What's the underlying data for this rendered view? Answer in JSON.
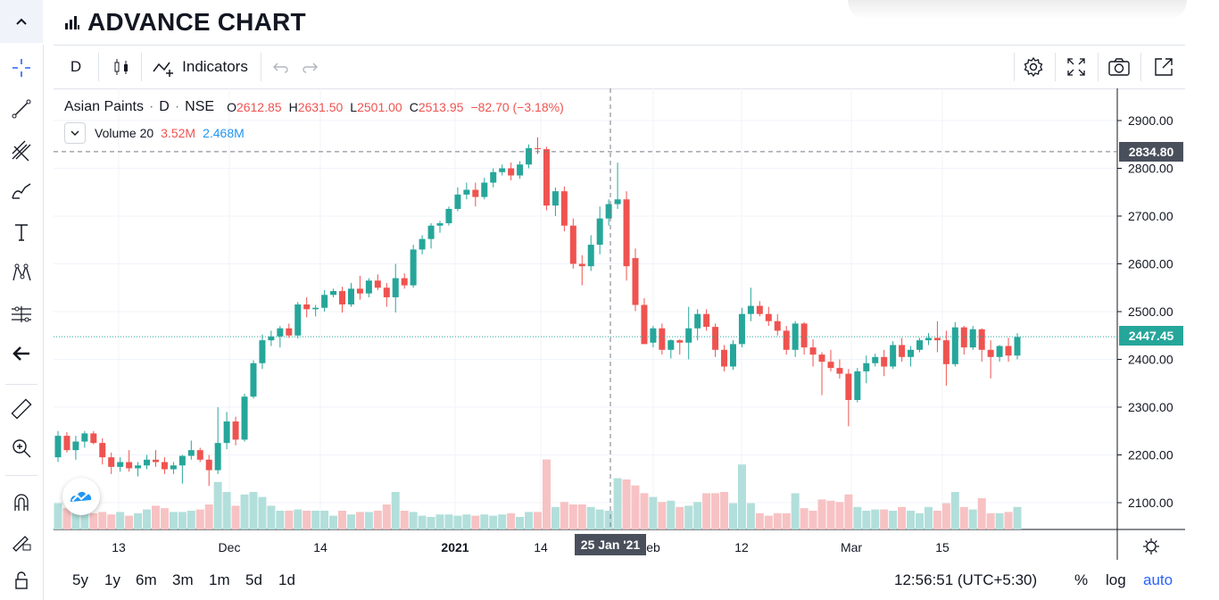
{
  "header": {
    "title": "ADVANCE CHART"
  },
  "toolbar": {
    "interval": "D",
    "indicators_label": "Indicators"
  },
  "legend": {
    "symbol": "Asian Paints",
    "dot": "·",
    "interval": "D",
    "exchange": "NSE",
    "open_label": "O",
    "open": "2612.85",
    "high_label": "H",
    "high": "2631.50",
    "low_label": "L",
    "low": "2501.00",
    "close_label": "C",
    "close": "2513.95",
    "change": "−82.70 (−3.18%)",
    "volume_label": "Volume 20",
    "volume_value": "3.52M",
    "volume_ma": "2.468M"
  },
  "price_axis": {
    "ticks": [
      "2900.00",
      "2800.00",
      "2700.00",
      "2600.00",
      "2500.00",
      "2400.00",
      "2300.00",
      "2200.00",
      "2100.00"
    ],
    "crosshair_price": "2834.80",
    "last_price": "2447.45"
  },
  "time_axis": {
    "ticks": [
      "13",
      "Dec",
      "14",
      "2021",
      "14",
      "eb",
      "12",
      "Mar",
      "15"
    ],
    "crosshair_date": "25 Jan '21"
  },
  "ranges": [
    "5y",
    "1y",
    "6m",
    "3m",
    "1m",
    "5d",
    "1d"
  ],
  "status": {
    "clock": "12:56:51 (UTC+5:30)",
    "percent": "%",
    "log": "log",
    "auto": "auto"
  },
  "colors": {
    "up": "#26a69a",
    "down": "#ef5350",
    "up_volume": "#b2dfdb",
    "down_volume": "#f7c2c3",
    "last_price_tag": "#26a69a",
    "crosshair_tag": "#4a4f5c",
    "accent": "#2962ff"
  },
  "chart_data": {
    "type": "candlestick",
    "symbol": "Asian Paints",
    "interval": "D",
    "ylim": [
      2050,
      2930
    ],
    "candles": [
      [
        2195,
        2250,
        2185,
        2240,
        2.1
      ],
      [
        2240,
        2248,
        2205,
        2210,
        1.7
      ],
      [
        2210,
        2240,
        2190,
        2228,
        1.6
      ],
      [
        2228,
        2250,
        2215,
        2245,
        1.4
      ],
      [
        2245,
        2250,
        2222,
        2225,
        1.3
      ],
      [
        2225,
        2235,
        2180,
        2195,
        1.4
      ],
      [
        2195,
        2205,
        2160,
        2175,
        1.2
      ],
      [
        2175,
        2195,
        2165,
        2185,
        1.4
      ],
      [
        2185,
        2210,
        2165,
        2172,
        1.1
      ],
      [
        2172,
        2185,
        2155,
        2178,
        1.3
      ],
      [
        2178,
        2200,
        2170,
        2190,
        1.6
      ],
      [
        2190,
        2210,
        2175,
        2185,
        1.9
      ],
      [
        2185,
        2195,
        2160,
        2170,
        1.7
      ],
      [
        2170,
        2185,
        2160,
        2178,
        1.4
      ],
      [
        2178,
        2200,
        2140,
        2198,
        1.4
      ],
      [
        2198,
        2230,
        2190,
        2210,
        1.5
      ],
      [
        2210,
        2215,
        2185,
        2190,
        1.6
      ],
      [
        2190,
        2200,
        2135,
        2168,
        2.0
      ],
      [
        2168,
        2300,
        2160,
        2225,
        3.8
      ],
      [
        2225,
        2290,
        2212,
        2270,
        3.0
      ],
      [
        2270,
        2280,
        2220,
        2232,
        1.9
      ],
      [
        2232,
        2328,
        2228,
        2322,
        2.8
      ],
      [
        2322,
        2398,
        2318,
        2392,
        3.0
      ],
      [
        2392,
        2452,
        2380,
        2440,
        2.6
      ],
      [
        2440,
        2460,
        2428,
        2448,
        1.9
      ],
      [
        2448,
        2470,
        2425,
        2465,
        1.5
      ],
      [
        2465,
        2475,
        2445,
        2450,
        1.5
      ],
      [
        2450,
        2520,
        2444,
        2515,
        1.6
      ],
      [
        2515,
        2530,
        2488,
        2505,
        1.5
      ],
      [
        2505,
        2514,
        2490,
        2508,
        1.5
      ],
      [
        2508,
        2545,
        2500,
        2535,
        1.5
      ],
      [
        2535,
        2548,
        2530,
        2543,
        1.1
      ],
      [
        2543,
        2552,
        2498,
        2515,
        1.5
      ],
      [
        2515,
        2560,
        2510,
        2548,
        1.2
      ],
      [
        2548,
        2575,
        2525,
        2538,
        1.4
      ],
      [
        2538,
        2570,
        2530,
        2565,
        1.4
      ],
      [
        2565,
        2578,
        2545,
        2550,
        1.5
      ],
      [
        2550,
        2560,
        2510,
        2530,
        2.0
      ],
      [
        2530,
        2600,
        2498,
        2570,
        3.0
      ],
      [
        2570,
        2580,
        2548,
        2555,
        1.5
      ],
      [
        2555,
        2640,
        2550,
        2630,
        1.4
      ],
      [
        2630,
        2660,
        2620,
        2652,
        1.1
      ],
      [
        2652,
        2685,
        2632,
        2680,
        1.0
      ],
      [
        2680,
        2690,
        2665,
        2685,
        1.2
      ],
      [
        2685,
        2720,
        2680,
        2715,
        1.2
      ],
      [
        2715,
        2760,
        2710,
        2745,
        1.1
      ],
      [
        2745,
        2770,
        2735,
        2755,
        1.2
      ],
      [
        2755,
        2770,
        2720,
        2740,
        1.1
      ],
      [
        2740,
        2780,
        2735,
        2770,
        1.2
      ],
      [
        2770,
        2800,
        2760,
        2792,
        1.1
      ],
      [
        2792,
        2808,
        2785,
        2800,
        1.2
      ],
      [
        2800,
        2812,
        2775,
        2785,
        1.3
      ],
      [
        2785,
        2815,
        2778,
        2808,
        1.0
      ],
      [
        2808,
        2850,
        2800,
        2842,
        1.4
      ],
      [
        2842,
        2865,
        2830,
        2840,
        1.4
      ],
      [
        2840,
        2845,
        2712,
        2722,
        5.6
      ],
      [
        2722,
        2760,
        2700,
        2752,
        1.8
      ],
      [
        2752,
        2762,
        2668,
        2680,
        2.2
      ],
      [
        2680,
        2695,
        2590,
        2600,
        2.0
      ],
      [
        2600,
        2618,
        2555,
        2595,
        2.0
      ],
      [
        2595,
        2660,
        2585,
        2640,
        1.8
      ],
      [
        2640,
        2720,
        2620,
        2695,
        1.6
      ],
      [
        2695,
        2735,
        2680,
        2725,
        1.5
      ],
      [
        2725,
        2812,
        2715,
        2735,
        4.1
      ],
      [
        2735,
        2752,
        2565,
        2595,
        4.0
      ],
      [
        2612,
        2632,
        2501,
        2514,
        3.52
      ],
      [
        2514,
        2528,
        2436,
        2432,
        2.9
      ],
      [
        2435,
        2470,
        2425,
        2465,
        2.6
      ],
      [
        2465,
        2475,
        2410,
        2420,
        2.2
      ],
      [
        2420,
        2442,
        2402,
        2440,
        2.3
      ],
      [
        2440,
        2442,
        2410,
        2435,
        1.8
      ],
      [
        2435,
        2510,
        2400,
        2465,
        1.9
      ],
      [
        2465,
        2505,
        2440,
        2495,
        2.2
      ],
      [
        2495,
        2505,
        2460,
        2468,
        2.9
      ],
      [
        2468,
        2475,
        2405,
        2420,
        2.9
      ],
      [
        2420,
        2430,
        2375,
        2385,
        3.0
      ],
      [
        2385,
        2440,
        2378,
        2432,
        2.1
      ],
      [
        2432,
        2508,
        2425,
        2495,
        5.2
      ],
      [
        2495,
        2550,
        2480,
        2512,
        2.1
      ],
      [
        2512,
        2522,
        2490,
        2495,
        1.3
      ],
      [
        2495,
        2510,
        2470,
        2480,
        1.1
      ],
      [
        2480,
        2495,
        2450,
        2460,
        1.3
      ],
      [
        2460,
        2470,
        2410,
        2420,
        1.3
      ],
      [
        2420,
        2480,
        2405,
        2475,
        2.9
      ],
      [
        2475,
        2478,
        2410,
        2425,
        1.7
      ],
      [
        2425,
        2442,
        2385,
        2410,
        1.5
      ],
      [
        2410,
        2415,
        2325,
        2395,
        2.4
      ],
      [
        2395,
        2420,
        2375,
        2382,
        2.3
      ],
      [
        2382,
        2400,
        2360,
        2370,
        2.2
      ],
      [
        2370,
        2380,
        2260,
        2315,
        2.8
      ],
      [
        2315,
        2382,
        2310,
        2375,
        1.8
      ],
      [
        2375,
        2408,
        2350,
        2392,
        1.5
      ],
      [
        2392,
        2412,
        2385,
        2405,
        1.6
      ],
      [
        2405,
        2420,
        2365,
        2385,
        1.6
      ],
      [
        2385,
        2438,
        2380,
        2430,
        1.5
      ],
      [
        2430,
        2445,
        2395,
        2405,
        1.8
      ],
      [
        2405,
        2428,
        2385,
        2420,
        1.5
      ],
      [
        2420,
        2445,
        2415,
        2440,
        1.3
      ],
      [
        2440,
        2455,
        2430,
        2445,
        1.8
      ],
      [
        2445,
        2480,
        2415,
        2440,
        1.5
      ],
      [
        2440,
        2460,
        2345,
        2390,
        2.1
      ],
      [
        2390,
        2478,
        2385,
        2467,
        3.0
      ],
      [
        2467,
        2470,
        2410,
        2425,
        1.8
      ],
      [
        2425,
        2470,
        2420,
        2463,
        1.6
      ],
      [
        2463,
        2465,
        2395,
        2420,
        2.5
      ],
      [
        2420,
        2440,
        2360,
        2405,
        1.3
      ],
      [
        2405,
        2430,
        2395,
        2428,
        1.3
      ],
      [
        2428,
        2445,
        2395,
        2408,
        1.4
      ],
      [
        2408,
        2455,
        2400,
        2447,
        1.8
      ]
    ]
  }
}
